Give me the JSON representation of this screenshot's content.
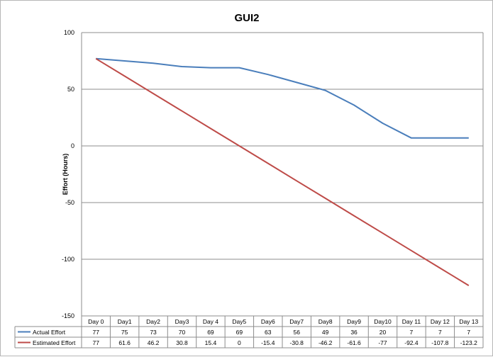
{
  "chart_data": {
    "type": "line",
    "title": "GUI2",
    "xlabel": "",
    "ylabel": "Effort (Hours)",
    "ylim": [
      -150,
      100
    ],
    "yticks": [
      100,
      50,
      0,
      -50,
      -100,
      -150
    ],
    "grid": true,
    "legend": "data-table-left",
    "categories": [
      "Day 0",
      "Day1",
      "Day2",
      "Day3",
      "Day 4",
      "Day5",
      "Day6",
      "Day7",
      "Day8",
      "Day9",
      "Day10",
      "Day 11",
      "Day 12",
      "Day 13"
    ],
    "series": [
      {
        "name": "Actual Effort",
        "color": "#4a7ebb",
        "values": [
          77,
          75,
          73,
          70,
          69,
          69,
          63,
          56,
          49,
          36,
          20,
          7,
          7,
          7
        ]
      },
      {
        "name": "Estimated Effort",
        "color": "#be4b48",
        "values": [
          77,
          61.6,
          46.2,
          30.8,
          15.4,
          0,
          -15.4,
          -30.8,
          -46.2,
          -61.6,
          -77,
          -92.4,
          -107.8,
          -123.2
        ]
      }
    ]
  }
}
